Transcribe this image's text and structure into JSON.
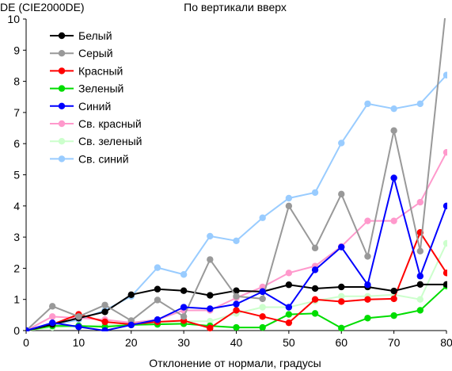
{
  "chart_data": {
    "type": "line",
    "title": "По вертикали вверх",
    "ylabel": "DE (CIE2000DE)",
    "xlabel": "Отклонение от нормали, градусы",
    "xlim": [
      0,
      80
    ],
    "ylim": [
      0,
      10
    ],
    "xticks": [
      0,
      10,
      20,
      30,
      40,
      50,
      60,
      70,
      80
    ],
    "yticks": [
      0,
      1,
      2,
      3,
      4,
      5,
      6,
      7,
      8,
      9,
      10
    ],
    "grid": false,
    "legend_position": "top-left",
    "x": [
      0,
      5,
      10,
      15,
      20,
      25,
      30,
      35,
      40,
      45,
      50,
      55,
      60,
      65,
      70,
      75,
      80
    ],
    "series": [
      {
        "name": "Белый",
        "color": "#000000",
        "values": [
          0.0,
          0.2,
          0.4,
          0.6,
          1.15,
          1.33,
          1.28,
          1.13,
          1.28,
          1.25,
          1.47,
          1.35,
          1.4,
          1.4,
          1.27,
          1.48,
          1.48
        ]
      },
      {
        "name": "Серый",
        "color": "#999999",
        "values": [
          0.0,
          0.78,
          0.45,
          0.82,
          0.32,
          0.98,
          0.45,
          2.28,
          1.1,
          1.02,
          4.0,
          2.65,
          4.38,
          2.38,
          6.42,
          2.55,
          10.5
        ]
      },
      {
        "name": "Красный",
        "color": "#ff0000",
        "values": [
          0.0,
          0.2,
          0.52,
          0.28,
          0.2,
          0.28,
          0.32,
          0.08,
          0.65,
          0.45,
          0.25,
          1.0,
          0.93,
          1.0,
          1.02,
          3.15,
          1.85
        ]
      },
      {
        "name": "Зеленый",
        "color": "#00dd00",
        "values": [
          0.0,
          0.15,
          0.15,
          0.12,
          0.18,
          0.2,
          0.22,
          0.15,
          0.1,
          0.1,
          0.52,
          0.55,
          0.08,
          0.4,
          0.48,
          0.65,
          1.43
        ]
      },
      {
        "name": "Синий",
        "color": "#0000ff",
        "values": [
          0.0,
          0.25,
          0.12,
          0.0,
          0.18,
          0.35,
          0.75,
          0.7,
          0.85,
          1.25,
          0.75,
          1.95,
          2.68,
          1.47,
          4.9,
          1.75,
          4.0
        ]
      },
      {
        "name": "Св. красный",
        "color": "#ff99cc",
        "values": [
          0.0,
          0.45,
          0.4,
          0.35,
          0.25,
          0.35,
          0.65,
          0.65,
          1.05,
          1.4,
          1.85,
          2.07,
          2.7,
          3.52,
          3.52,
          4.12,
          5.72
        ]
      },
      {
        "name": "Св. зеленый",
        "color": "#ccffcc",
        "values": [
          0.0,
          0.1,
          0.12,
          0.18,
          0.18,
          0.25,
          0.3,
          0.3,
          0.55,
          0.75,
          0.75,
          0.95,
          1.1,
          1.1,
          1.15,
          1.0,
          2.8
        ]
      },
      {
        "name": "Св. синий",
        "color": "#99ccff",
        "values": [
          0.0,
          0.18,
          0.35,
          0.65,
          1.1,
          2.02,
          1.8,
          3.03,
          2.88,
          3.62,
          4.25,
          4.43,
          6.02,
          7.28,
          7.12,
          7.28,
          8.2
        ]
      }
    ]
  }
}
